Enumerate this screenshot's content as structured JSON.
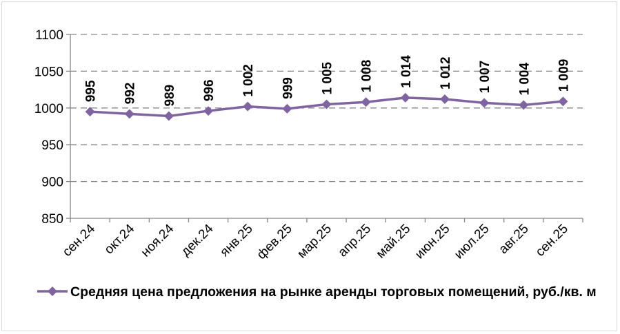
{
  "chart_data": {
    "type": "line",
    "categories": [
      "сен.24",
      "окт.24",
      "ноя.24",
      "дек.24",
      "янв.25",
      "фев.25",
      "мар.25",
      "апр.25",
      "май.25",
      "июн.25",
      "июл.25",
      "авг.25",
      "сен.25"
    ],
    "series": [
      {
        "name": "Средняя цена предложения на рынке аренды торговых помещений, руб./кв. м",
        "values": [
          995,
          992,
          989,
          996,
          1002,
          999,
          1005,
          1008,
          1014,
          1012,
          1007,
          1004,
          1009
        ],
        "labels": [
          "995",
          "992",
          "989",
          "996",
          "1 002",
          "999",
          "1 005",
          "1 008",
          "1 014",
          "1 012",
          "1 007",
          "1 004",
          "1 009"
        ],
        "color": "#8064a2"
      }
    ],
    "ylim": [
      850,
      1100
    ],
    "yticks": [
      "850",
      "900",
      "950",
      "1000",
      "1050",
      "1100"
    ],
    "ytick_values": [
      850,
      900,
      950,
      1000,
      1050,
      1100
    ],
    "grid": "horizontal dashed",
    "legend": "bottom"
  }
}
